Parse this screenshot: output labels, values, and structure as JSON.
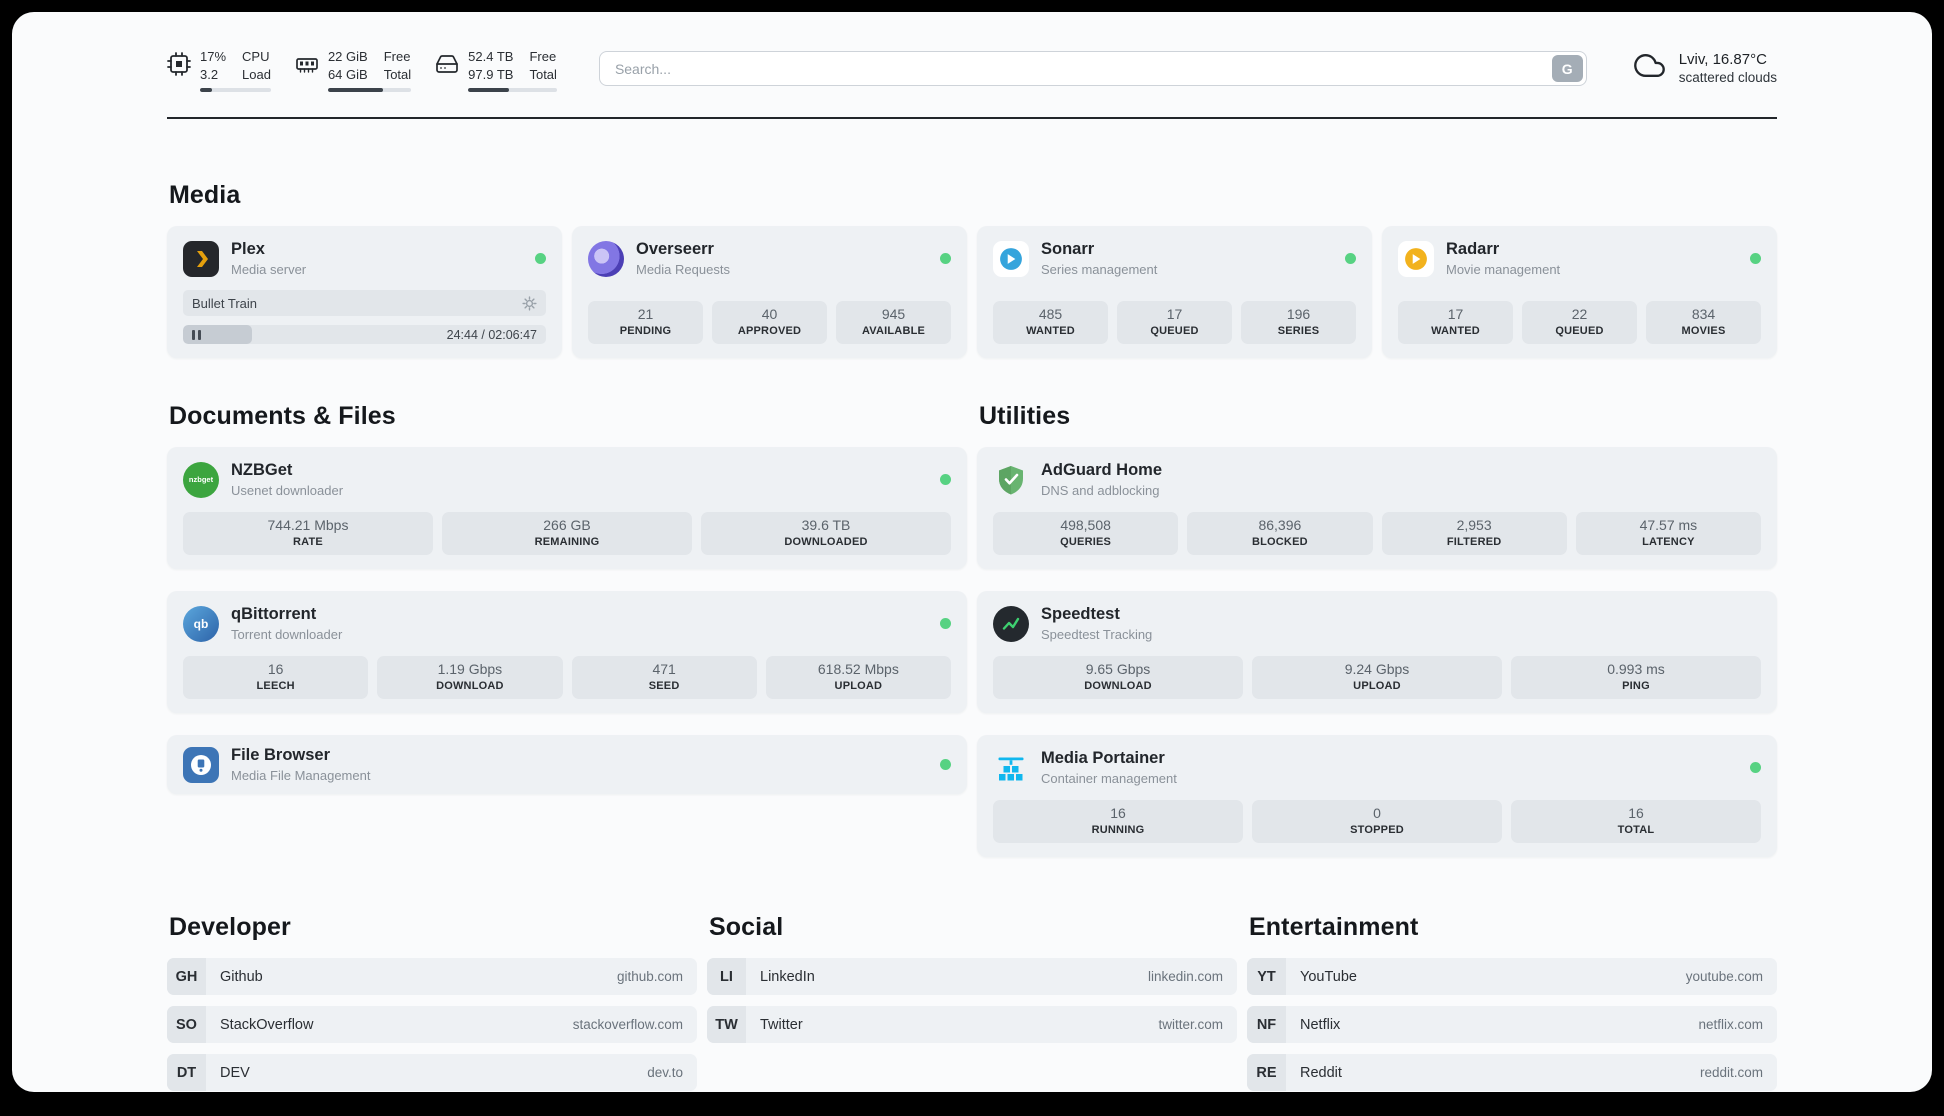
{
  "colors": {
    "status_online": "#57d282",
    "plex_yellow": "#e5a00d",
    "accent_dark": "#22262b"
  },
  "topbar": {
    "monitors": [
      {
        "name": "cpu",
        "value_top": "17%",
        "value_bottom": "3.2",
        "label_top": "CPU",
        "label_bottom": "Load",
        "progress_percent": 17
      },
      {
        "name": "memory",
        "value_top": "22 GiB",
        "value_bottom": "64 GiB",
        "label_top": "Free",
        "label_bottom": "Total",
        "progress_percent": 66
      },
      {
        "name": "storage",
        "value_top": "52.4 TB",
        "value_bottom": "97.9 TB",
        "label_top": "Free",
        "label_bottom": "Total",
        "progress_percent": 46
      }
    ],
    "search": {
      "placeholder": "Search...",
      "engine_button": "G"
    },
    "weather": {
      "location": "Lviv, 16.87°C",
      "condition": "scattered clouds"
    }
  },
  "sections": {
    "media": {
      "title": "Media",
      "apps": [
        {
          "name": "Plex",
          "subtitle": "Media server",
          "online": true,
          "player": {
            "now_playing": "Bullet Train",
            "time": "24:44 / 02:06:47",
            "progress_percent": 19
          }
        },
        {
          "name": "Overseerr",
          "subtitle": "Media Requests",
          "online": true,
          "stats": [
            {
              "value": "21",
              "label": "PENDING"
            },
            {
              "value": "40",
              "label": "APPROVED"
            },
            {
              "value": "945",
              "label": "AVAILABLE"
            }
          ]
        },
        {
          "name": "Sonarr",
          "subtitle": "Series management",
          "online": true,
          "stats": [
            {
              "value": "485",
              "label": "WANTED"
            },
            {
              "value": "17",
              "label": "QUEUED"
            },
            {
              "value": "196",
              "label": "SERIES"
            }
          ]
        },
        {
          "name": "Radarr",
          "subtitle": "Movie management",
          "online": true,
          "stats": [
            {
              "value": "17",
              "label": "WANTED"
            },
            {
              "value": "22",
              "label": "QUEUED"
            },
            {
              "value": "834",
              "label": "MOVIES"
            }
          ]
        }
      ]
    },
    "documents": {
      "title": "Documents & Files",
      "apps": [
        {
          "name": "NZBGet",
          "subtitle": "Usenet downloader",
          "online": true,
          "icon_text": "nzbget",
          "stats": [
            {
              "value": "744.21 Mbps",
              "label": "RATE"
            },
            {
              "value": "266 GB",
              "label": "REMAINING"
            },
            {
              "value": "39.6 TB",
              "label": "DOWNLOADED"
            }
          ]
        },
        {
          "name": "qBittorrent",
          "subtitle": "Torrent downloader",
          "online": true,
          "icon_text": "qb",
          "stats": [
            {
              "value": "16",
              "label": "LEECH"
            },
            {
              "value": "1.19 Gbps",
              "label": "DOWNLOAD"
            },
            {
              "value": "471",
              "label": "SEED"
            },
            {
              "value": "618.52 Mbps",
              "label": "UPLOAD"
            }
          ]
        },
        {
          "name": "File Browser",
          "subtitle": "Media File Management",
          "online": true,
          "stats": []
        }
      ]
    },
    "utilities": {
      "title": "Utilities",
      "apps": [
        {
          "name": "AdGuard Home",
          "subtitle": "DNS and adblocking",
          "stats": [
            {
              "value": "498,508",
              "label": "QUERIES"
            },
            {
              "value": "86,396",
              "label": "BLOCKED"
            },
            {
              "value": "2,953",
              "label": "FILTERED"
            },
            {
              "value": "47.57 ms",
              "label": "LATENCY"
            }
          ]
        },
        {
          "name": "Speedtest",
          "subtitle": "Speedtest Tracking",
          "stats": [
            {
              "value": "9.65 Gbps",
              "label": "DOWNLOAD"
            },
            {
              "value": "9.24 Gbps",
              "label": "UPLOAD"
            },
            {
              "value": "0.993 ms",
              "label": "PING"
            }
          ]
        },
        {
          "name": "Media Portainer",
          "subtitle": "Container management",
          "online": true,
          "stats": [
            {
              "value": "16",
              "label": "RUNNING"
            },
            {
              "value": "0",
              "label": "STOPPED"
            },
            {
              "value": "16",
              "label": "TOTAL"
            }
          ]
        }
      ]
    },
    "bookmarks": [
      {
        "title": "Developer",
        "items": [
          {
            "abbr": "GH",
            "name": "Github",
            "url": "github.com"
          },
          {
            "abbr": "SO",
            "name": "StackOverflow",
            "url": "stackoverflow.com"
          },
          {
            "abbr": "DT",
            "name": "DEV",
            "url": "dev.to"
          }
        ]
      },
      {
        "title": "Social",
        "items": [
          {
            "abbr": "LI",
            "name": "LinkedIn",
            "url": "linkedin.com"
          },
          {
            "abbr": "TW",
            "name": "Twitter",
            "url": "twitter.com"
          }
        ]
      },
      {
        "title": "Entertainment",
        "items": [
          {
            "abbr": "YT",
            "name": "YouTube",
            "url": "youtube.com"
          },
          {
            "abbr": "NF",
            "name": "Netflix",
            "url": "netflix.com"
          },
          {
            "abbr": "RE",
            "name": "Reddit",
            "url": "reddit.com"
          }
        ]
      }
    ]
  }
}
